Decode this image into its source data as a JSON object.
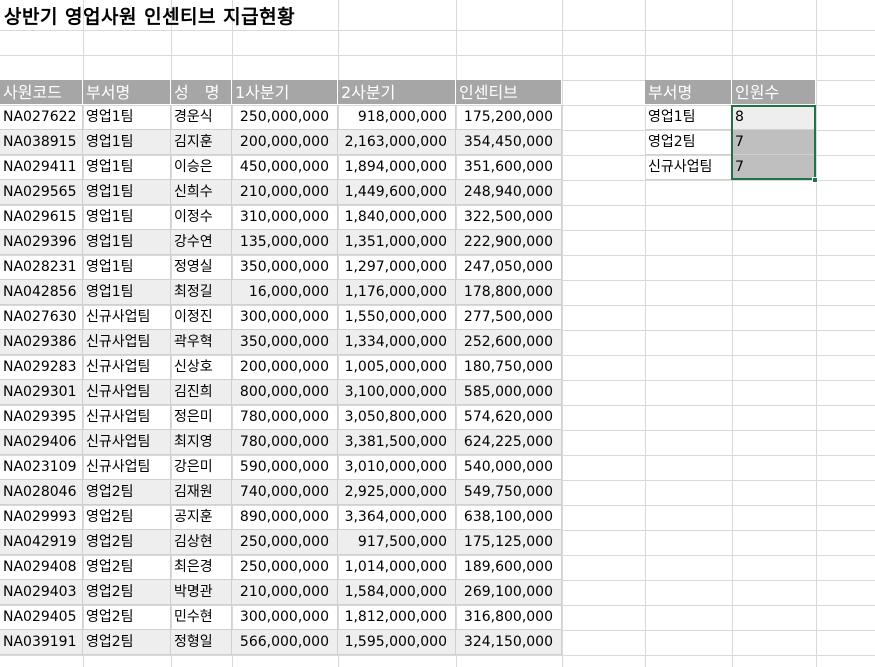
{
  "sheet": {
    "title": "상반기 영업사원 인센티브 지급현황",
    "main_headers": [
      "사원코드",
      "부서명",
      "성　명",
      "1사분기",
      "2사분기",
      "인센티브"
    ],
    "rows": [
      [
        "NA027622",
        "영업1팀",
        "경운식",
        "250,000,000",
        "918,000,000",
        "175,200,000"
      ],
      [
        "NA038915",
        "영업1팀",
        "김지훈",
        "200,000,000",
        "2,163,000,000",
        "354,450,000"
      ],
      [
        "NA029411",
        "영업1팀",
        "이승은",
        "450,000,000",
        "1,894,000,000",
        "351,600,000"
      ],
      [
        "NA029565",
        "영업1팀",
        "신희수",
        "210,000,000",
        "1,449,600,000",
        "248,940,000"
      ],
      [
        "NA029615",
        "영업1팀",
        "이정수",
        "310,000,000",
        "1,840,000,000",
        "322,500,000"
      ],
      [
        "NA029396",
        "영업1팀",
        "강수연",
        "135,000,000",
        "1,351,000,000",
        "222,900,000"
      ],
      [
        "NA028231",
        "영업1팀",
        "정영실",
        "350,000,000",
        "1,297,000,000",
        "247,050,000"
      ],
      [
        "NA042856",
        "영업1팀",
        "최정길",
        "16,000,000",
        "1,176,000,000",
        "178,800,000"
      ],
      [
        "NA027630",
        "신규사업팀",
        "이정진",
        "300,000,000",
        "1,550,000,000",
        "277,500,000"
      ],
      [
        "NA029386",
        "신규사업팀",
        "곽우혁",
        "350,000,000",
        "1,334,000,000",
        "252,600,000"
      ],
      [
        "NA029283",
        "신규사업팀",
        "신상호",
        "200,000,000",
        "1,005,000,000",
        "180,750,000"
      ],
      [
        "NA029301",
        "신규사업팀",
        "김진희",
        "800,000,000",
        "3,100,000,000",
        "585,000,000"
      ],
      [
        "NA029395",
        "신규사업팀",
        "정은미",
        "780,000,000",
        "3,050,800,000",
        "574,620,000"
      ],
      [
        "NA029406",
        "신규사업팀",
        "최지영",
        "780,000,000",
        "3,381,500,000",
        "624,225,000"
      ],
      [
        "NA023109",
        "신규사업팀",
        "강은미",
        "590,000,000",
        "3,010,000,000",
        "540,000,000"
      ],
      [
        "NA028046",
        "영업2팀",
        "김재원",
        "740,000,000",
        "2,925,000,000",
        "549,750,000"
      ],
      [
        "NA029993",
        "영업2팀",
        "공지훈",
        "890,000,000",
        "3,364,000,000",
        "638,100,000"
      ],
      [
        "NA042919",
        "영업2팀",
        "김상현",
        "250,000,000",
        "917,500,000",
        "175,125,000"
      ],
      [
        "NA029408",
        "영업2팀",
        "최은경",
        "250,000,000",
        "1,014,000,000",
        "189,600,000"
      ],
      [
        "NA029403",
        "영업2팀",
        "박명관",
        "210,000,000",
        "1,584,000,000",
        "269,100,000"
      ],
      [
        "NA029405",
        "영업2팀",
        "민수현",
        "300,000,000",
        "1,812,000,000",
        "316,800,000"
      ],
      [
        "NA039191",
        "영업2팀",
        "정형일",
        "566,000,000",
        "1,595,000,000",
        "324,150,000"
      ]
    ],
    "summary_headers": [
      "부서명",
      "인원수"
    ],
    "summary_rows": [
      [
        "영업1팀",
        "8"
      ],
      [
        "영업2팀",
        "7"
      ],
      [
        "신규사업팀",
        "7"
      ]
    ]
  }
}
